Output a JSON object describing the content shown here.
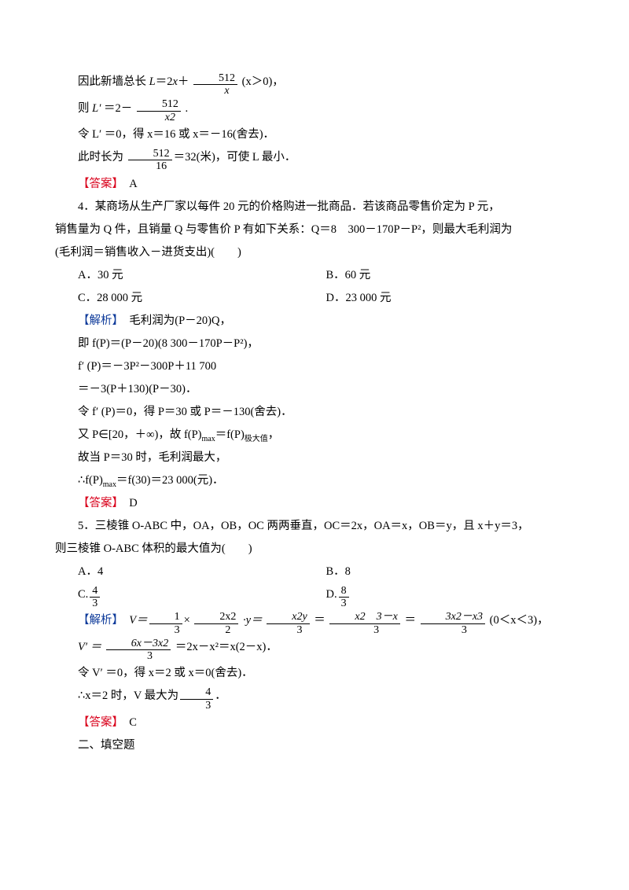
{
  "colors": {
    "text": "#000000",
    "red": "#d9001b",
    "blue": "#0d3a9a",
    "background": "#ffffff"
  },
  "font": {
    "family": "SimSun",
    "size_pt": 11,
    "line_height": 2.0
  },
  "q3tail": {
    "l1a": "因此新墙总长 ",
    "l1b": "L",
    "l1c": "＝2",
    "l1d": "x",
    "l1e": "＋ ",
    "frac1_num": "512",
    "frac1_den": "x",
    "l1f": " (x＞0)，",
    "l2a": "则 ",
    "l2b": "L′",
    "l2c": " ＝2－ ",
    "frac2_num": "512",
    "frac2_den": "x2",
    "l2d": " .",
    "l3": "令 L′ ＝0，得 x＝16 或 x＝－16(舍去)．",
    "l4a": "此时长为 ",
    "frac3_num": "512",
    "frac3_den": "16",
    "l4b": "＝32(米)，可使 L 最小．",
    "ans_label": "【答案】",
    "ans_val": "　A"
  },
  "q4": {
    "stem1": "4．某商场从生产厂家以每件 20 元的价格购进一批商品．若该商品零售价定为 P 元，",
    "stem2": "销售量为 Q 件，且销量 Q 与零售价 P 有如下关系：Q＝8　300－170P－P²，则最大毛利润为",
    "stem3": "(毛利润＝销售收入－进货支出)(　　)",
    "optA": "A．30 元",
    "optB": "B．60 元",
    "optC": "C．28 000 元",
    "optD": "D．23 000 元",
    "sol_label": "【解析】",
    "s1": "　毛利润为(P－20)Q，",
    "s2": "即 f(P)＝(P－20)(8 300－170P－P²)，",
    "s3": "f′ (P)＝－3P²－300P＋11 700",
    "s4": "＝－3(P＋130)(P－30)．",
    "s5": "令 f′ (P)＝0，得 P＝30 或 P＝－130(舍去)．",
    "s6a": "又 P∈[20，＋∞)，故 f(P)",
    "s6b": "max",
    "s6c": "＝f(P)",
    "s6d": "极大值",
    "s6e": "，",
    "s7": "故当 P＝30 时，毛利润最大，",
    "s8a": "∴f(P)",
    "s8b": "max",
    "s8c": "＝f(30)＝23 000(元)．",
    "ans_label": "【答案】",
    "ans_val": "　D"
  },
  "q5": {
    "stem1": "5．三棱锥 O-ABC 中，OA，OB，OC 两两垂直，OC＝2x，OA＝x，OB＝y，且 x＋y＝3，",
    "stem2": "则三棱锥 O-ABC 体积的最大值为(　　)",
    "optA": "A．4",
    "optB": "B．8",
    "optC_text": "C.",
    "optC_num": "4",
    "optC_den": "3",
    "optD_text": "D.",
    "optD_num": "8",
    "optD_den": "3",
    "sol_label": "【解析】",
    "s1a": "　V＝",
    "f1n": "1",
    "f1d": "3",
    "s1b": "× ",
    "f2n": "2x2",
    "f2d": "2",
    "s1c": " ·y＝ ",
    "f3n": "x2y",
    "f3d": "3",
    "s1d": " ＝ ",
    "f4n": "x2　3－x",
    "f4d": "3",
    "s1e": "  ＝ ",
    "f5n": "3x2－x3",
    "f5d": "3",
    "s1f": "  (0＜x＜3)，",
    "s2a": "V′ ＝ ",
    "f6n": "6x－3x2",
    "f6d": "3",
    "s2b": "  ＝2x－x²＝x(2－x)．",
    "s3": "令 V′ ＝0，得 x＝2 或 x＝0(舍去)．",
    "s4a": "∴x＝2 时，V 最大为",
    "f7n": "4",
    "f7d": "3",
    "s4b": "．",
    "ans_label": "【答案】",
    "ans_val": "　C"
  },
  "section2": "二、填空题"
}
